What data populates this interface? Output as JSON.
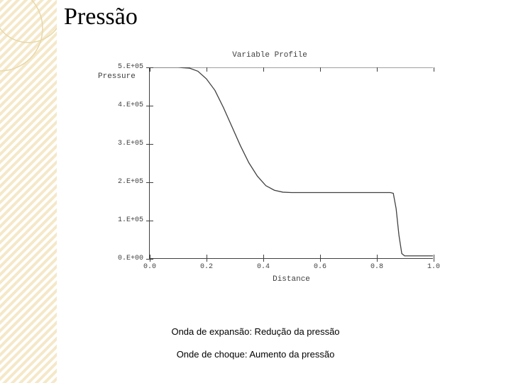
{
  "page": {
    "title": "Pressão"
  },
  "chart": {
    "type": "line",
    "title": "Variable Profile",
    "ylabel_top": "Pressure",
    "xlabel": "Distance",
    "xlim": [
      0.0,
      1.0
    ],
    "ylim": [
      0,
      500000
    ],
    "xticks": [
      {
        "v": 0.0,
        "label": "0.0"
      },
      {
        "v": 0.2,
        "label": "0.2"
      },
      {
        "v": 0.4,
        "label": "0.4"
      },
      {
        "v": 0.6,
        "label": "0.6"
      },
      {
        "v": 0.8,
        "label": "0.8"
      },
      {
        "v": 1.0,
        "label": "1.0"
      }
    ],
    "yticks": [
      {
        "v": 0,
        "label": "0.E+00"
      },
      {
        "v": 100000,
        "label": "1.E+05"
      },
      {
        "v": 200000,
        "label": "2.E+05"
      },
      {
        "v": 300000,
        "label": "3.E+05"
      },
      {
        "v": 400000,
        "label": "4.E+05"
      },
      {
        "v": 500000,
        "label": "5.E+05"
      }
    ],
    "line_color": "#404040",
    "line_width": 1.3,
    "axis_color": "#404040",
    "font_family": "Courier New",
    "tick_fontsize": 10,
    "label_fontsize": 11,
    "background_color": "#ffffff",
    "series": [
      {
        "x": 0.0,
        "y": 500000
      },
      {
        "x": 0.05,
        "y": 500000
      },
      {
        "x": 0.1,
        "y": 500000
      },
      {
        "x": 0.14,
        "y": 498000
      },
      {
        "x": 0.17,
        "y": 490000
      },
      {
        "x": 0.2,
        "y": 470000
      },
      {
        "x": 0.23,
        "y": 440000
      },
      {
        "x": 0.26,
        "y": 395000
      },
      {
        "x": 0.29,
        "y": 345000
      },
      {
        "x": 0.32,
        "y": 295000
      },
      {
        "x": 0.35,
        "y": 250000
      },
      {
        "x": 0.38,
        "y": 215000
      },
      {
        "x": 0.41,
        "y": 190000
      },
      {
        "x": 0.44,
        "y": 178000
      },
      {
        "x": 0.47,
        "y": 173000
      },
      {
        "x": 0.5,
        "y": 172000
      },
      {
        "x": 0.6,
        "y": 172000
      },
      {
        "x": 0.7,
        "y": 172000
      },
      {
        "x": 0.8,
        "y": 172000
      },
      {
        "x": 0.85,
        "y": 172000
      },
      {
        "x": 0.86,
        "y": 170000
      },
      {
        "x": 0.87,
        "y": 130000
      },
      {
        "x": 0.88,
        "y": 60000
      },
      {
        "x": 0.89,
        "y": 12000
      },
      {
        "x": 0.9,
        "y": 6000
      },
      {
        "x": 0.95,
        "y": 6000
      },
      {
        "x": 1.0,
        "y": 6000
      }
    ]
  },
  "decor": {
    "stripe_color": "#f5e8c8",
    "stripe_bg": "#ffffff",
    "circle_stroke": "#e8d8a8"
  },
  "captions": {
    "line1": "Onda de expansão: Redução da pressão",
    "line2": "Onde de choque: Aumento da pressão"
  }
}
